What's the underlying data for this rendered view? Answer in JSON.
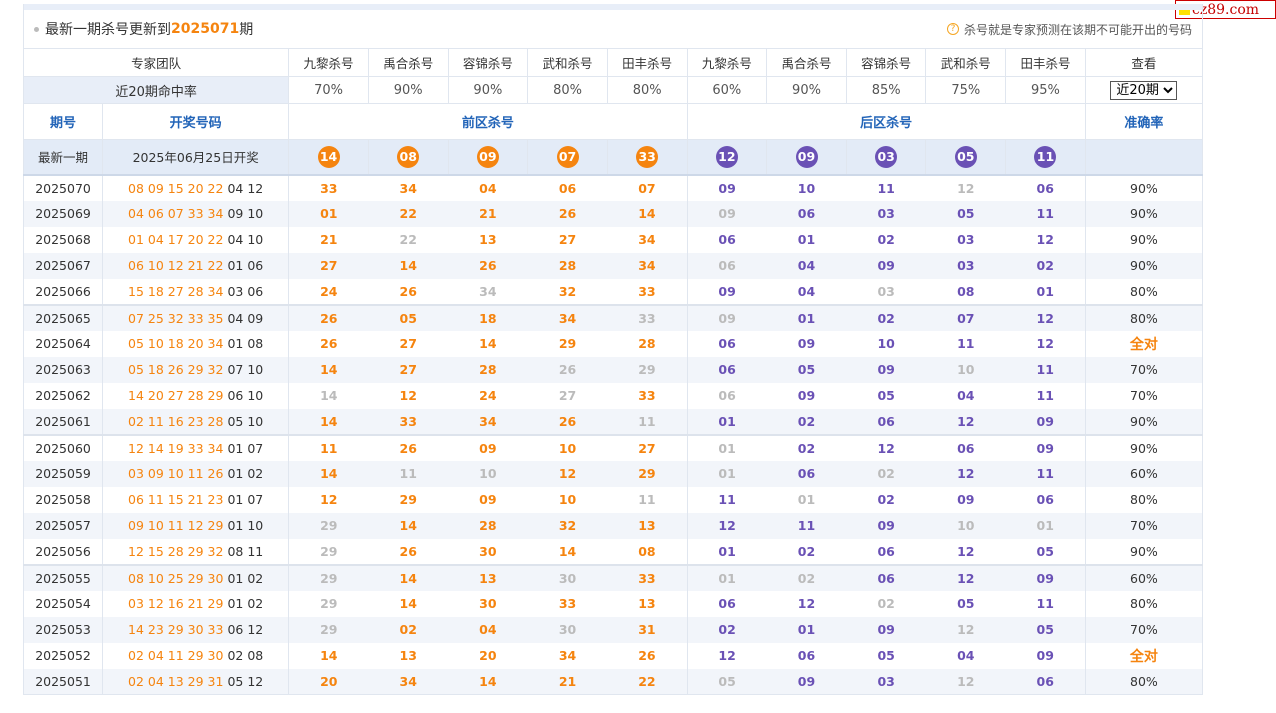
{
  "logo": {
    "text": "cz89.com"
  },
  "header": {
    "title_prefix": "最新一期杀号更新到",
    "period": "2025071",
    "title_suffix": "期",
    "help_icon": "question-circle-icon",
    "note": "杀号就是专家预测在该期不可能开出的号码"
  },
  "colors": {
    "front": "#f5840f",
    "back": "#6a51b5",
    "miss": "#bbbbbb",
    "head": "#2264b8"
  },
  "team": {
    "label": "专家团队",
    "experts": [
      "九黎杀号",
      "禹合杀号",
      "容锦杀号",
      "武和杀号",
      "田丰杀号",
      "九黎杀号",
      "禹合杀号",
      "容锦杀号",
      "武和杀号",
      "田丰杀号"
    ],
    "view_label": "查看"
  },
  "rates": {
    "label": "近20期命中率",
    "values": [
      "70%",
      "90%",
      "90%",
      "80%",
      "80%",
      "60%",
      "90%",
      "85%",
      "75%",
      "95%"
    ],
    "select_value": "近20期"
  },
  "columns": {
    "issue": "期号",
    "draw": "开奖号码",
    "front": "前区杀号",
    "back": "后区杀号",
    "accuracy": "准确率"
  },
  "latest": {
    "issue": "最新一期",
    "date": "2025年06月25日开奖",
    "front": [
      "14",
      "08",
      "09",
      "07",
      "33"
    ],
    "back": [
      "12",
      "09",
      "03",
      "05",
      "11"
    ]
  },
  "rows": [
    {
      "issue": "2025070",
      "front_draw": "08 09 15 20 22",
      "back_draw": "04 12",
      "kills": [
        [
          "33",
          1
        ],
        [
          "34",
          1
        ],
        [
          "04",
          1
        ],
        [
          "06",
          1
        ],
        [
          "07",
          1
        ],
        [
          "09",
          1
        ],
        [
          "10",
          1
        ],
        [
          "11",
          1
        ],
        [
          "12",
          0
        ],
        [
          "06",
          1
        ]
      ],
      "acc": "90%"
    },
    {
      "issue": "2025069",
      "front_draw": "04 06 07 33 34",
      "back_draw": "09 10",
      "kills": [
        [
          "01",
          1
        ],
        [
          "22",
          1
        ],
        [
          "21",
          1
        ],
        [
          "26",
          1
        ],
        [
          "14",
          1
        ],
        [
          "09",
          0
        ],
        [
          "06",
          1
        ],
        [
          "03",
          1
        ],
        [
          "05",
          1
        ],
        [
          "11",
          1
        ]
      ],
      "acc": "90%"
    },
    {
      "issue": "2025068",
      "front_draw": "01 04 17 20 22",
      "back_draw": "04 10",
      "kills": [
        [
          "21",
          1
        ],
        [
          "22",
          0
        ],
        [
          "13",
          1
        ],
        [
          "27",
          1
        ],
        [
          "34",
          1
        ],
        [
          "06",
          1
        ],
        [
          "01",
          1
        ],
        [
          "02",
          1
        ],
        [
          "03",
          1
        ],
        [
          "12",
          1
        ]
      ],
      "acc": "90%"
    },
    {
      "issue": "2025067",
      "front_draw": "06 10 12 21 22",
      "back_draw": "01 06",
      "kills": [
        [
          "27",
          1
        ],
        [
          "14",
          1
        ],
        [
          "26",
          1
        ],
        [
          "28",
          1
        ],
        [
          "34",
          1
        ],
        [
          "06",
          0
        ],
        [
          "04",
          1
        ],
        [
          "09",
          1
        ],
        [
          "03",
          1
        ],
        [
          "02",
          1
        ]
      ],
      "acc": "90%"
    },
    {
      "issue": "2025066",
      "front_draw": "15 18 27 28 34",
      "back_draw": "03 06",
      "kills": [
        [
          "24",
          1
        ],
        [
          "26",
          1
        ],
        [
          "34",
          0
        ],
        [
          "32",
          1
        ],
        [
          "33",
          1
        ],
        [
          "09",
          1
        ],
        [
          "04",
          1
        ],
        [
          "03",
          0
        ],
        [
          "08",
          1
        ],
        [
          "01",
          1
        ]
      ],
      "acc": "80%"
    },
    {
      "issue": "2025065",
      "front_draw": "07 25 32 33 35",
      "back_draw": "04 09",
      "kills": [
        [
          "26",
          1
        ],
        [
          "05",
          1
        ],
        [
          "18",
          1
        ],
        [
          "34",
          1
        ],
        [
          "33",
          0
        ],
        [
          "09",
          0
        ],
        [
          "01",
          1
        ],
        [
          "02",
          1
        ],
        [
          "07",
          1
        ],
        [
          "12",
          1
        ]
      ],
      "acc": "80%"
    },
    {
      "issue": "2025064",
      "front_draw": "05 10 18 20 34",
      "back_draw": "01 08",
      "kills": [
        [
          "26",
          1
        ],
        [
          "27",
          1
        ],
        [
          "14",
          1
        ],
        [
          "29",
          1
        ],
        [
          "28",
          1
        ],
        [
          "06",
          1
        ],
        [
          "09",
          1
        ],
        [
          "10",
          1
        ],
        [
          "11",
          1
        ],
        [
          "12",
          1
        ]
      ],
      "acc": "全对"
    },
    {
      "issue": "2025063",
      "front_draw": "05 18 26 29 32",
      "back_draw": "07 10",
      "kills": [
        [
          "14",
          1
        ],
        [
          "27",
          1
        ],
        [
          "28",
          1
        ],
        [
          "26",
          0
        ],
        [
          "29",
          0
        ],
        [
          "06",
          1
        ],
        [
          "05",
          1
        ],
        [
          "09",
          1
        ],
        [
          "10",
          0
        ],
        [
          "11",
          1
        ]
      ],
      "acc": "70%"
    },
    {
      "issue": "2025062",
      "front_draw": "14 20 27 28 29",
      "back_draw": "06 10",
      "kills": [
        [
          "14",
          0
        ],
        [
          "12",
          1
        ],
        [
          "24",
          1
        ],
        [
          "27",
          0
        ],
        [
          "33",
          1
        ],
        [
          "06",
          0
        ],
        [
          "09",
          1
        ],
        [
          "05",
          1
        ],
        [
          "04",
          1
        ],
        [
          "11",
          1
        ]
      ],
      "acc": "70%"
    },
    {
      "issue": "2025061",
      "front_draw": "02 11 16 23 28",
      "back_draw": "05 10",
      "kills": [
        [
          "14",
          1
        ],
        [
          "33",
          1
        ],
        [
          "34",
          1
        ],
        [
          "26",
          1
        ],
        [
          "11",
          0
        ],
        [
          "01",
          1
        ],
        [
          "02",
          1
        ],
        [
          "06",
          1
        ],
        [
          "12",
          1
        ],
        [
          "09",
          1
        ]
      ],
      "acc": "90%"
    },
    {
      "issue": "2025060",
      "front_draw": "12 14 19 33 34",
      "back_draw": "01 07",
      "kills": [
        [
          "11",
          1
        ],
        [
          "26",
          1
        ],
        [
          "09",
          1
        ],
        [
          "10",
          1
        ],
        [
          "27",
          1
        ],
        [
          "01",
          0
        ],
        [
          "02",
          1
        ],
        [
          "12",
          1
        ],
        [
          "06",
          1
        ],
        [
          "09",
          1
        ]
      ],
      "acc": "90%"
    },
    {
      "issue": "2025059",
      "front_draw": "03 09 10 11 26",
      "back_draw": "01 02",
      "kills": [
        [
          "14",
          1
        ],
        [
          "11",
          0
        ],
        [
          "10",
          0
        ],
        [
          "12",
          1
        ],
        [
          "29",
          1
        ],
        [
          "01",
          0
        ],
        [
          "06",
          1
        ],
        [
          "02",
          0
        ],
        [
          "12",
          1
        ],
        [
          "11",
          1
        ]
      ],
      "acc": "60%"
    },
    {
      "issue": "2025058",
      "front_draw": "06 11 15 21 23",
      "back_draw": "01 07",
      "kills": [
        [
          "12",
          1
        ],
        [
          "29",
          1
        ],
        [
          "09",
          1
        ],
        [
          "10",
          1
        ],
        [
          "11",
          0
        ],
        [
          "11",
          1
        ],
        [
          "01",
          0
        ],
        [
          "02",
          1
        ],
        [
          "09",
          1
        ],
        [
          "06",
          1
        ]
      ],
      "acc": "80%"
    },
    {
      "issue": "2025057",
      "front_draw": "09 10 11 12 29",
      "back_draw": "01 10",
      "kills": [
        [
          "29",
          0
        ],
        [
          "14",
          1
        ],
        [
          "28",
          1
        ],
        [
          "32",
          1
        ],
        [
          "13",
          1
        ],
        [
          "12",
          1
        ],
        [
          "11",
          1
        ],
        [
          "09",
          1
        ],
        [
          "10",
          0
        ],
        [
          "01",
          0
        ]
      ],
      "acc": "70%"
    },
    {
      "issue": "2025056",
      "front_draw": "12 15 28 29 32",
      "back_draw": "08 11",
      "kills": [
        [
          "29",
          0
        ],
        [
          "26",
          1
        ],
        [
          "30",
          1
        ],
        [
          "14",
          1
        ],
        [
          "08",
          1
        ],
        [
          "01",
          1
        ],
        [
          "02",
          1
        ],
        [
          "06",
          1
        ],
        [
          "12",
          1
        ],
        [
          "05",
          1
        ]
      ],
      "acc": "90%"
    },
    {
      "issue": "2025055",
      "front_draw": "08 10 25 29 30",
      "back_draw": "01 02",
      "kills": [
        [
          "29",
          0
        ],
        [
          "14",
          1
        ],
        [
          "13",
          1
        ],
        [
          "30",
          0
        ],
        [
          "33",
          1
        ],
        [
          "01",
          0
        ],
        [
          "02",
          0
        ],
        [
          "06",
          1
        ],
        [
          "12",
          1
        ],
        [
          "09",
          1
        ]
      ],
      "acc": "60%"
    },
    {
      "issue": "2025054",
      "front_draw": "03 12 16 21 29",
      "back_draw": "01 02",
      "kills": [
        [
          "29",
          0
        ],
        [
          "14",
          1
        ],
        [
          "30",
          1
        ],
        [
          "33",
          1
        ],
        [
          "13",
          1
        ],
        [
          "06",
          1
        ],
        [
          "12",
          1
        ],
        [
          "02",
          0
        ],
        [
          "05",
          1
        ],
        [
          "11",
          1
        ]
      ],
      "acc": "80%"
    },
    {
      "issue": "2025053",
      "front_draw": "14 23 29 30 33",
      "back_draw": "06 12",
      "kills": [
        [
          "29",
          0
        ],
        [
          "02",
          1
        ],
        [
          "04",
          1
        ],
        [
          "30",
          0
        ],
        [
          "31",
          1
        ],
        [
          "02",
          1
        ],
        [
          "01",
          1
        ],
        [
          "09",
          1
        ],
        [
          "12",
          0
        ],
        [
          "05",
          1
        ]
      ],
      "acc": "70%"
    },
    {
      "issue": "2025052",
      "front_draw": "02 04 11 29 30",
      "back_draw": "02 08",
      "kills": [
        [
          "14",
          1
        ],
        [
          "13",
          1
        ],
        [
          "20",
          1
        ],
        [
          "34",
          1
        ],
        [
          "26",
          1
        ],
        [
          "12",
          1
        ],
        [
          "06",
          1
        ],
        [
          "05",
          1
        ],
        [
          "04",
          1
        ],
        [
          "09",
          1
        ]
      ],
      "acc": "全对"
    },
    {
      "issue": "2025051",
      "front_draw": "02 04 13 29 31",
      "back_draw": "05 12",
      "kills": [
        [
          "20",
          1
        ],
        [
          "34",
          1
        ],
        [
          "14",
          1
        ],
        [
          "21",
          1
        ],
        [
          "22",
          1
        ],
        [
          "05",
          0
        ],
        [
          "09",
          1
        ],
        [
          "03",
          1
        ],
        [
          "12",
          0
        ],
        [
          "06",
          1
        ]
      ],
      "acc": "80%"
    }
  ]
}
